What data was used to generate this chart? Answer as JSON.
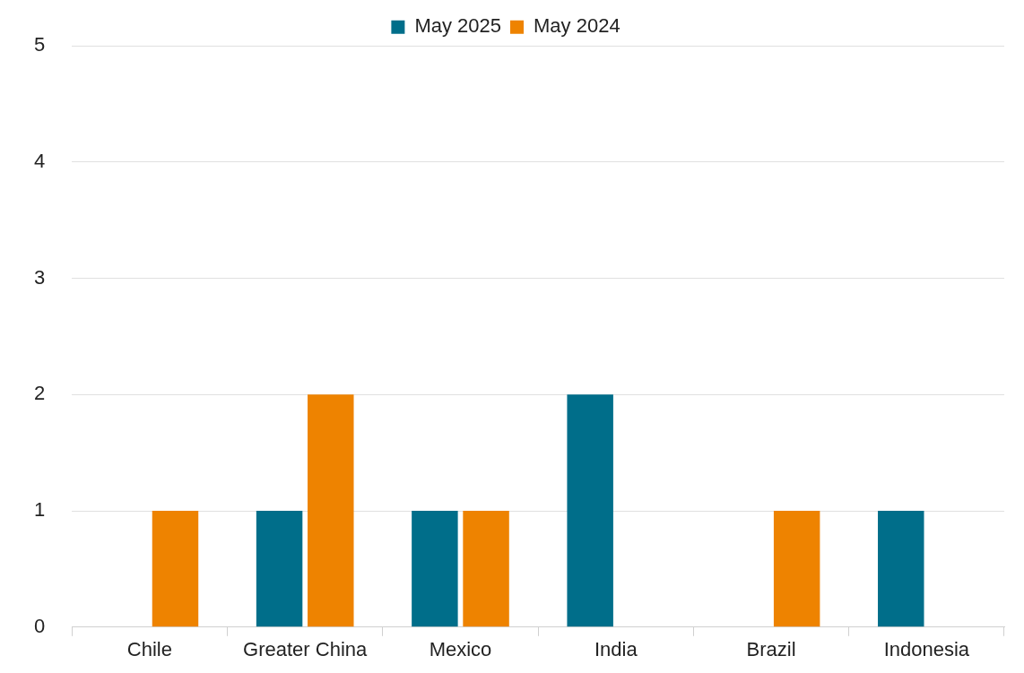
{
  "chart_data": {
    "type": "bar",
    "categories": [
      "Chile",
      "Greater China",
      "Mexico",
      "India",
      "Brazil",
      "Indonesia"
    ],
    "series": [
      {
        "name": "May 2025",
        "color": "#006e8a",
        "values": [
          0,
          1,
          1,
          2,
          0,
          1
        ]
      },
      {
        "name": "May 2024",
        "color": "#ee8300",
        "values": [
          1,
          2,
          1,
          0,
          1,
          0
        ]
      }
    ],
    "ylim": [
      0,
      5
    ],
    "yticks": [
      0,
      1,
      2,
      3,
      4,
      5
    ],
    "grid": "y",
    "legend": "top"
  }
}
